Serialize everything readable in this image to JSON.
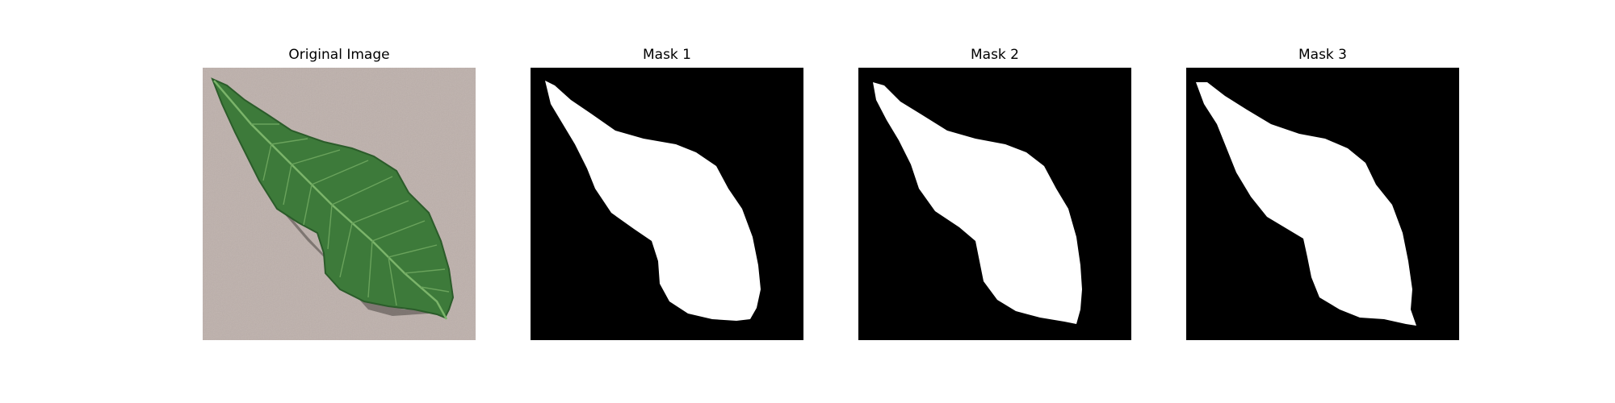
{
  "figure": {
    "panels": [
      {
        "title": "Original Image",
        "kind": "photo"
      },
      {
        "title": "Mask 1",
        "kind": "mask"
      },
      {
        "title": "Mask 2",
        "kind": "mask"
      },
      {
        "title": "Mask 3",
        "kind": "mask"
      }
    ]
  },
  "colors": {
    "mask_background": "#000000",
    "mask_foreground": "#ffffff",
    "photo_background": "#bdb0ab",
    "leaf_fill": "#3d7a3a",
    "leaf_vein": "#7bb46a",
    "shadow": "#4a4541"
  }
}
